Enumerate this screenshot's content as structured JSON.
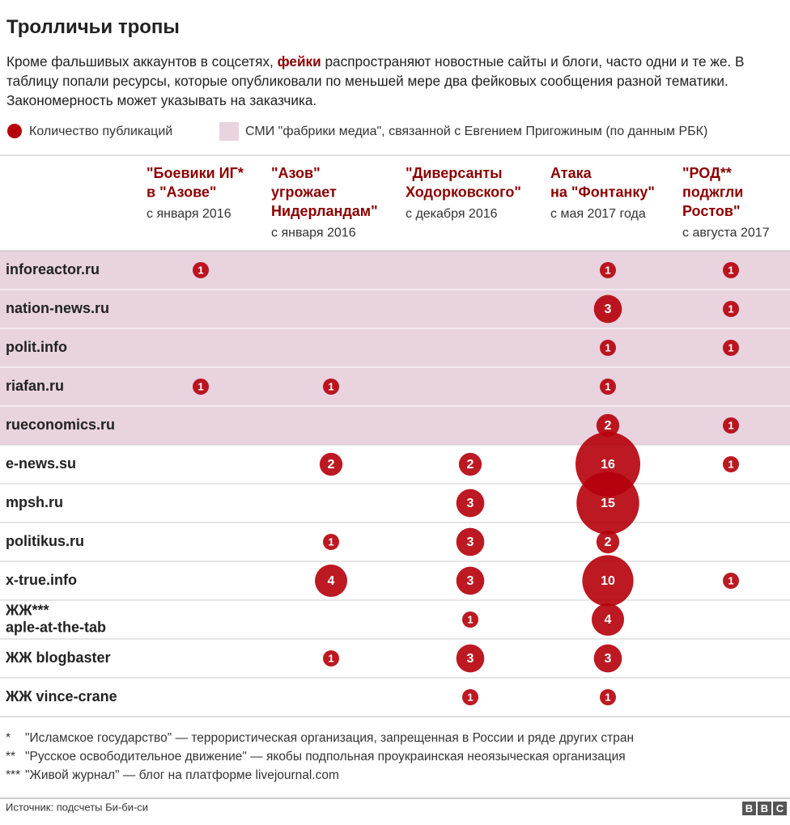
{
  "header": {
    "title": "Тролличьи тропы",
    "intro": [
      "Кроме фальшивых аккаунтов в соцсетях, ",
      "фейки",
      " распространяют новостные сайты и блоги, часто одни и те же. В таблицу попали ресурсы, которые опубликовали по меньшей мере два фейковых сообщения разной тематики. Закономерность может указывать на заказчика."
    ]
  },
  "legend": [
    "Количество публикаций",
    "СМИ \"фабрики медиа\", связанной с Евгением Пригожиным (по данным РБК)"
  ],
  "table": {
    "columns": [
      {
        "title": [
          "\"Боевики ИГ*",
          "в \"Азове\""
        ],
        "since": "с января 2016"
      },
      {
        "title": [
          "\"Азов\"",
          "угрожает",
          "Нидерландам\""
        ],
        "since": "с января 2016"
      },
      {
        "title": [
          "\"Диверсанты",
          "Ходорковского\""
        ],
        "since": "с декабря 2016"
      },
      {
        "title": [
          "Атака",
          "на \"Фонтанку\""
        ],
        "since": "с мая 2017 года"
      },
      {
        "title": [
          "\"РОД**",
          "поджгли",
          "Ростов\""
        ],
        "since": "с августа 2017"
      }
    ],
    "rows": [
      {
        "site": [
          "inforeactor.ru"
        ],
        "highlight": true,
        "counts": [
          1,
          null,
          null,
          1,
          1
        ]
      },
      {
        "site": [
          "nation-news.ru"
        ],
        "highlight": true,
        "counts": [
          null,
          null,
          null,
          3,
          1
        ]
      },
      {
        "site": [
          "polit.info"
        ],
        "highlight": true,
        "counts": [
          null,
          null,
          null,
          1,
          1
        ]
      },
      {
        "site": [
          "riafan.ru"
        ],
        "highlight": true,
        "counts": [
          1,
          1,
          null,
          1,
          null
        ]
      },
      {
        "site": [
          "rueconomics.ru"
        ],
        "highlight": true,
        "counts": [
          null,
          null,
          null,
          2,
          1
        ]
      },
      {
        "site": [
          "e-news.su"
        ],
        "highlight": false,
        "counts": [
          null,
          2,
          2,
          16,
          1
        ]
      },
      {
        "site": [
          "mpsh.ru"
        ],
        "highlight": false,
        "counts": [
          null,
          null,
          3,
          15,
          null
        ]
      },
      {
        "site": [
          "politikus.ru"
        ],
        "highlight": false,
        "counts": [
          null,
          1,
          3,
          2,
          null
        ]
      },
      {
        "site": [
          "x-true.info"
        ],
        "highlight": false,
        "counts": [
          null,
          4,
          3,
          10,
          1
        ]
      },
      {
        "site": [
          "ЖЖ***",
          "aple-at-the-tab"
        ],
        "highlight": false,
        "counts": [
          null,
          null,
          1,
          4,
          null
        ]
      },
      {
        "site": [
          "ЖЖ blogbaster"
        ],
        "highlight": false,
        "counts": [
          null,
          1,
          3,
          3,
          null
        ]
      },
      {
        "site": [
          "ЖЖ vince-crane"
        ],
        "highlight": false,
        "counts": [
          null,
          null,
          1,
          1,
          null
        ]
      }
    ]
  },
  "footnotes": [
    {
      "mark": "*",
      "text": "\"Исламское государство\" — террористическая организация, запрещенная в России и ряде других стран"
    },
    {
      "mark": "**",
      "text": "\"Русское освободительное движение\" — якобы подпольная проукраинская неоязыческая организация"
    },
    {
      "mark": "***",
      "text": "\"Живой журнал\" — блог на платформе livejournal.com"
    }
  ],
  "source": "Источник: подсчеты Би-би-си",
  "logo": [
    "B",
    "B",
    "C"
  ]
}
